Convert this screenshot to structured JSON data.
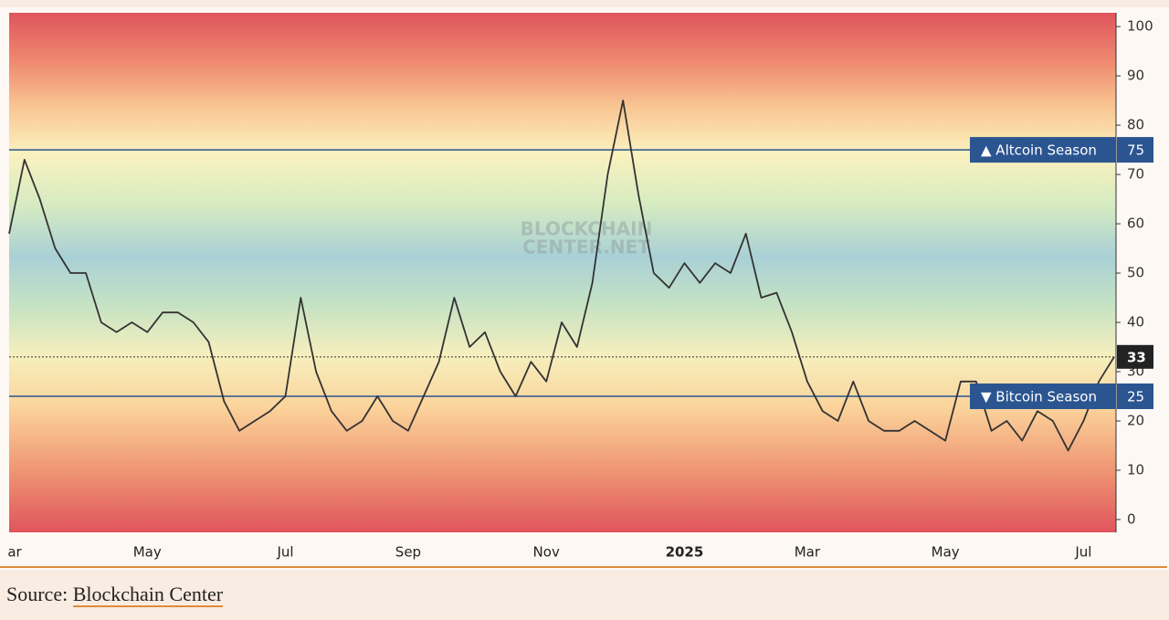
{
  "chart_data": {
    "type": "line",
    "categories": [
      "ar",
      null,
      null,
      null,
      null,
      null,
      null,
      null,
      null,
      "May",
      null,
      null,
      null,
      null,
      null,
      null,
      null,
      null,
      "Jul",
      null,
      null,
      null,
      null,
      null,
      null,
      null,
      "Sep",
      null,
      null,
      null,
      null,
      null,
      null,
      null,
      null,
      "Nov",
      null,
      null,
      null,
      null,
      null,
      null,
      null,
      null,
      "2025",
      null,
      null,
      null,
      null,
      null,
      null,
      null,
      "Mar",
      null,
      null,
      null,
      null,
      null,
      null,
      null,
      null,
      "May",
      null,
      null,
      null,
      null,
      null,
      null,
      null,
      null,
      "Jul",
      null,
      null
    ],
    "values": [
      58,
      73,
      65,
      55,
      50,
      50,
      40,
      38,
      40,
      38,
      42,
      42,
      40,
      36,
      24,
      18,
      20,
      22,
      25,
      45,
      30,
      22,
      18,
      20,
      25,
      20,
      18,
      25,
      32,
      45,
      35,
      38,
      30,
      25,
      32,
      28,
      40,
      35,
      48,
      70,
      85,
      66,
      50,
      47,
      52,
      48,
      52,
      50,
      58,
      45,
      46,
      38,
      28,
      22,
      20,
      28,
      20,
      18,
      18,
      20,
      18,
      16,
      28,
      28,
      18,
      20,
      16,
      22,
      20,
      14,
      20,
      28,
      33
    ],
    "color": "#333333",
    "ylim": [
      -2.6,
      102.8
    ],
    "yticks": [
      0,
      10,
      20,
      30,
      40,
      50,
      60,
      70,
      80,
      90,
      100
    ],
    "thresholds": [
      {
        "value": 75,
        "label": "▲ Altcoin Season"
      },
      {
        "value": 25,
        "label": "▼ Bitcoin Season"
      }
    ],
    "watermark": [
      "BLOCKCHAIN",
      "CENTER.NET"
    ]
  },
  "source": {
    "label": "Source:",
    "link": "Blockchain Center"
  }
}
